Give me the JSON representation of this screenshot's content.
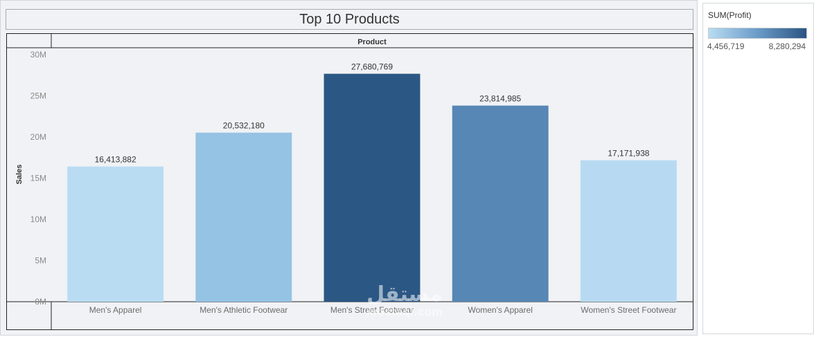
{
  "dashboard": {
    "title": "Top 10 Products"
  },
  "legend": {
    "title": "SUM(Profit)",
    "min_label": "4,456,719",
    "max_label": "8,280,294",
    "color_low": "#b9dcf2",
    "color_mid": "#6a9bc8",
    "color_high": "#2b5482"
  },
  "watermark": {
    "arabic": "مستقل",
    "latin": "mostaql.com"
  },
  "chart_data": {
    "type": "bar",
    "title": "Top 10 Products",
    "column_header": "Product",
    "xlabel": "Product",
    "ylabel": "Sales",
    "ylim": [
      0,
      30000000
    ],
    "y_ticks": [
      0,
      5000000,
      10000000,
      15000000,
      20000000,
      25000000,
      30000000
    ],
    "y_tick_labels": [
      "0M",
      "5M",
      "10M",
      "15M",
      "20M",
      "25M",
      "30M"
    ],
    "categories": [
      "Men's Apparel",
      "Men's Athletic Footwear",
      "Men's Street Footwear",
      "Women's Apparel",
      "Women's Street Footwear"
    ],
    "values": [
      16413882,
      20532180,
      27680769,
      23814985,
      17171938
    ],
    "value_labels": [
      "16,413,882",
      "20,532,180",
      "27,680,769",
      "23,814,985",
      "17,171,938"
    ],
    "colors": [
      "#b9dcf2",
      "#95c3e4",
      "#2b5784",
      "#5687b5",
      "#b7daf2"
    ],
    "color_encoding": "SUM(Profit)",
    "grid": false,
    "legend_position": "top-right"
  }
}
